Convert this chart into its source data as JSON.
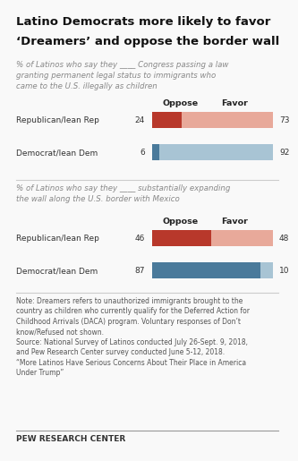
{
  "title_line1": "Latino Democrats more likely to favor",
  "title_line2": "‘Dreamers’ and oppose the border wall",
  "subtitle1_parts": [
    {
      "text": "% of Latinos who say they ____ ",
      "style": "italic",
      "color": "#888888"
    },
    {
      "text": "Congress passing a law\ngranting permanent legal status to immigrants who\ncame to the U.S. illegally as children",
      "style": "italic",
      "color": "#888888"
    }
  ],
  "subtitle1": "% of Latinos who say they ____ Congress passing a law\ngranting permanent legal status to immigrants who\ncame to the U.S. illegally as children",
  "subtitle2": "% of Latinos who say they ____ substantially expanding\nthe wall along the U.S. border with Mexico",
  "chart1": {
    "categories": [
      "Republican/lean Rep",
      "Democrat/lean Dem"
    ],
    "oppose": [
      24,
      6
    ],
    "favor": [
      73,
      92
    ],
    "oppose_colors": [
      "#b8382b",
      "#4a7a9b"
    ],
    "favor_colors": [
      "#e8a99a",
      "#a8c4d4"
    ]
  },
  "chart2": {
    "categories": [
      "Republican/lean Rep",
      "Democrat/lean Dem"
    ],
    "oppose": [
      46,
      87
    ],
    "favor": [
      48,
      10
    ],
    "oppose_colors": [
      "#b8382b",
      "#4a7a9b"
    ],
    "favor_colors": [
      "#e8a99a",
      "#a8c4d4"
    ]
  },
  "note": "Note: Dreamers refers to unauthorized immigrants brought to the\ncountry as children who currently qualify for the Deferred Action for\nChildhood Arrivals (DACA) program. Voluntary responses of Don’t\nknow/Refused not shown.\nSource: National Survey of Latinos conducted July 26-Sept. 9, 2018,\nand Pew Research Center survey conducted June 5-12, 2018.\n“More Latinos Have Serious Concerns About Their Place in America\nUnder Trump”",
  "footer": "PEW RESEARCH CENTER",
  "background_color": "#f9f9f9",
  "text_color": "#333333",
  "note_color": "#555555"
}
